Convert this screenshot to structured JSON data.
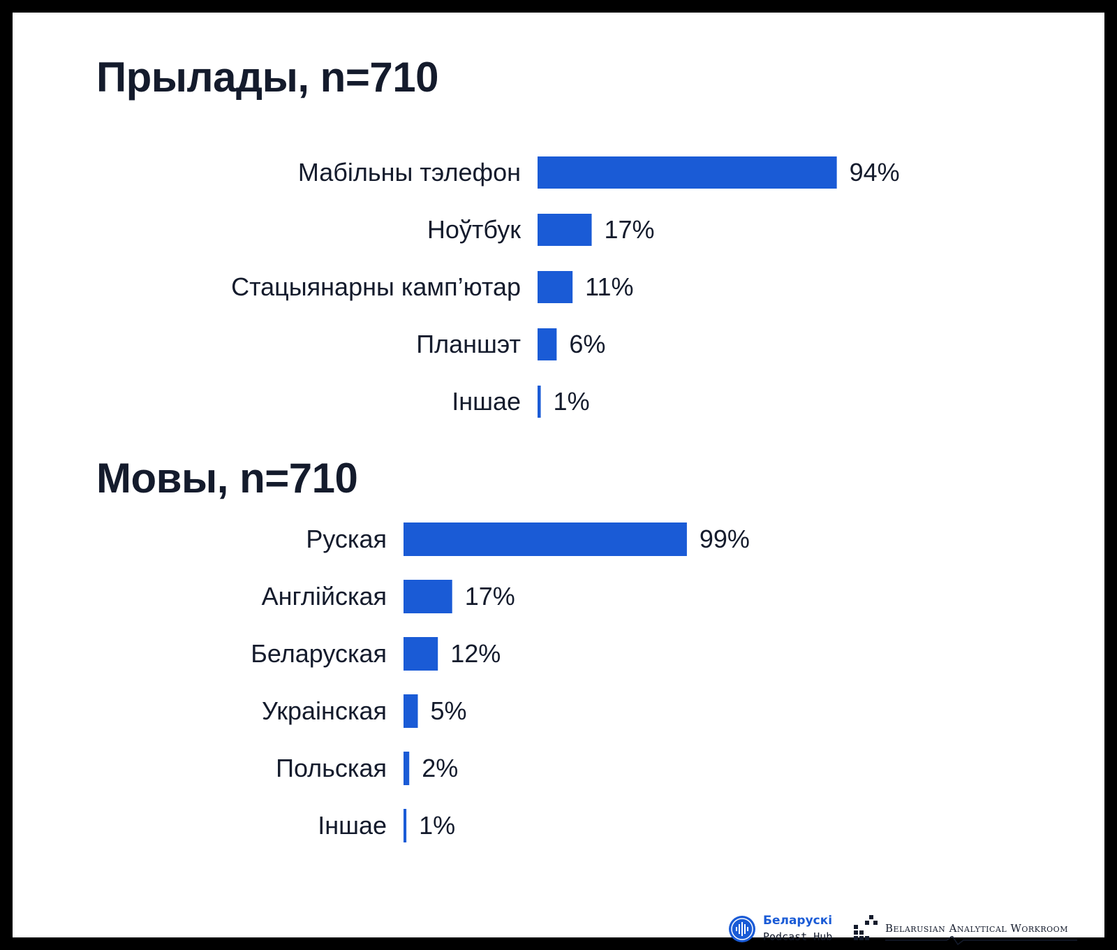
{
  "charts": [
    {
      "title": "Прылады, n=710",
      "chart_data": {
        "type": "bar",
        "orientation": "horizontal",
        "categories": [
          "Мабільны тэлефон",
          "Ноўтбук",
          "Стацыянарны камп’ютар",
          "Планшэт",
          "Іншае"
        ],
        "values": [
          94,
          17,
          11,
          6,
          1
        ],
        "value_labels": [
          "94%",
          "17%",
          "11%",
          "6%",
          "1%"
        ],
        "unit": "%"
      }
    },
    {
      "title": "Мовы, n=710",
      "chart_data": {
        "type": "bar",
        "orientation": "horizontal",
        "categories": [
          "Руская",
          "Англійская",
          "Беларуская",
          "Украінская",
          "Польская",
          "Іншае"
        ],
        "values": [
          99,
          17,
          12,
          5,
          2,
          1
        ],
        "value_labels": [
          "99%",
          "17%",
          "12%",
          "5%",
          "2%",
          "1%"
        ],
        "unit": "%"
      }
    }
  ],
  "colors": {
    "bar": "#1a5bd6",
    "text": "#141b2c",
    "frame": "#000000",
    "background": "#ffffff"
  },
  "footer": {
    "logo1_line1": "Беларускі",
    "logo1_line2": "Podcast Hub",
    "logo1_icon": "microphone-waveform-icon",
    "logo2_text": "Belarusian Analytical Workroom",
    "logo2_icon": "pixel-blocks-icon"
  }
}
